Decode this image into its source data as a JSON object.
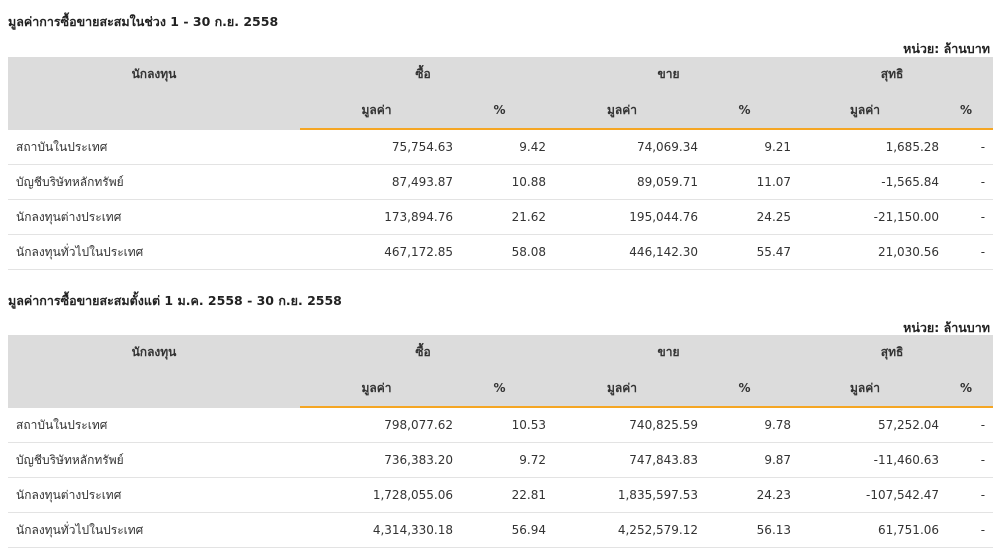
{
  "unit_label": "หน่วย: ล้านบาท",
  "headers": {
    "investor": "นักลงทุน",
    "buy": "ซื้อ",
    "sell": "ขาย",
    "net": "สุทธิ",
    "value": "มูลค่า",
    "percent": "%"
  },
  "tables": [
    {
      "title": "มูลค่าการซื้อขายสะสมในช่วง 1 - 30 ก.ย. 2558",
      "rows": [
        {
          "name": "สถาบันในประเทศ",
          "buy_value": "75,754.63",
          "buy_pct": "9.42",
          "sell_value": "74,069.34",
          "sell_pct": "9.21",
          "net_value": "1,685.28",
          "net_pct": "-",
          "net_sign": "pos"
        },
        {
          "name": "บัญชีบริษัทหลักทรัพย์",
          "buy_value": "87,493.87",
          "buy_pct": "10.88",
          "sell_value": "89,059.71",
          "sell_pct": "11.07",
          "net_value": "-1,565.84",
          "net_pct": "-",
          "net_sign": "neg"
        },
        {
          "name": "นักลงทุนต่างประเทศ",
          "buy_value": "173,894.76",
          "buy_pct": "21.62",
          "sell_value": "195,044.76",
          "sell_pct": "24.25",
          "net_value": "-21,150.00",
          "net_pct": "-",
          "net_sign": "neg"
        },
        {
          "name": "นักลงทุนทั่วไปในประเทศ",
          "buy_value": "467,172.85",
          "buy_pct": "58.08",
          "sell_value": "446,142.30",
          "sell_pct": "55.47",
          "net_value": "21,030.56",
          "net_pct": "-",
          "net_sign": "pos"
        }
      ]
    },
    {
      "title": "มูลค่าการซื้อขายสะสมตั้งแต่ 1 ม.ค. 2558 - 30 ก.ย. 2558",
      "rows": [
        {
          "name": "สถาบันในประเทศ",
          "buy_value": "798,077.62",
          "buy_pct": "10.53",
          "sell_value": "740,825.59",
          "sell_pct": "9.78",
          "net_value": "57,252.04",
          "net_pct": "-",
          "net_sign": "pos"
        },
        {
          "name": "บัญชีบริษัทหลักทรัพย์",
          "buy_value": "736,383.20",
          "buy_pct": "9.72",
          "sell_value": "747,843.83",
          "sell_pct": "9.87",
          "net_value": "-11,460.63",
          "net_pct": "-",
          "net_sign": "neg"
        },
        {
          "name": "นักลงทุนต่างประเทศ",
          "buy_value": "1,728,055.06",
          "buy_pct": "22.81",
          "sell_value": "1,835,597.53",
          "sell_pct": "24.23",
          "net_value": "-107,542.47",
          "net_pct": "-",
          "net_sign": "neg"
        },
        {
          "name": "นักลงทุนทั่วไปในประเทศ",
          "buy_value": "4,314,330.18",
          "buy_pct": "56.94",
          "sell_value": "4,252,579.12",
          "sell_pct": "56.13",
          "net_value": "61,751.06",
          "net_pct": "-",
          "net_sign": "pos"
        }
      ]
    }
  ],
  "colors": {
    "header_bg": "#dcdcdc",
    "accent_line": "#f5a623",
    "positive": "#3a9a3a",
    "negative": "#e02020"
  }
}
